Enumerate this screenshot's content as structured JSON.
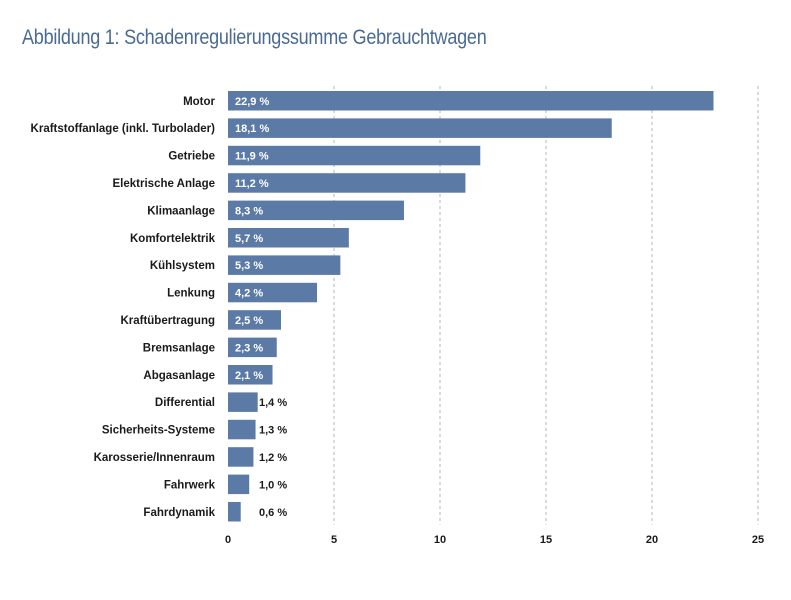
{
  "title": "Abbildung 1: Schadenregulierungssumme Gebrauchtwagen",
  "colors": {
    "bar": "#5b7aa6",
    "title": "#4a6a95",
    "grid": "#b5b5b5"
  },
  "chart_data": {
    "type": "bar",
    "orientation": "horizontal",
    "categories": [
      "Motor",
      "Kraftstoffanlage (inkl. Turbolader)",
      "Getriebe",
      "Elektrische Anlage",
      "Klimaanlage",
      "Komfortelektrik",
      "Kühlsystem",
      "Lenkung",
      "Kraftübertragung",
      "Bremsanlage",
      "Abgasanlage",
      "Differential",
      "Sicherheits-Systeme",
      "Karosserie/Innenraum",
      "Fahrwerk",
      "Fahrdynamik"
    ],
    "values": [
      22.9,
      18.1,
      11.9,
      11.2,
      8.3,
      5.7,
      5.3,
      4.2,
      2.5,
      2.3,
      2.1,
      1.4,
      1.3,
      1.2,
      1.0,
      0.6
    ],
    "value_labels": [
      "22,9 %",
      "18,1 %",
      "11,9 %",
      "11,2 %",
      "8,3 %",
      "5,7 %",
      "5,3 %",
      "4,2 %",
      "2,5 %",
      "2,3 %",
      "2,1 %",
      "1,4 %",
      "1,3 %",
      "1,2 %",
      "1,0 %",
      "0,6 %"
    ],
    "xlim": [
      0,
      25
    ],
    "xticks": [
      0,
      5,
      10,
      15,
      20,
      25
    ],
    "grid": "vertical dashed"
  }
}
